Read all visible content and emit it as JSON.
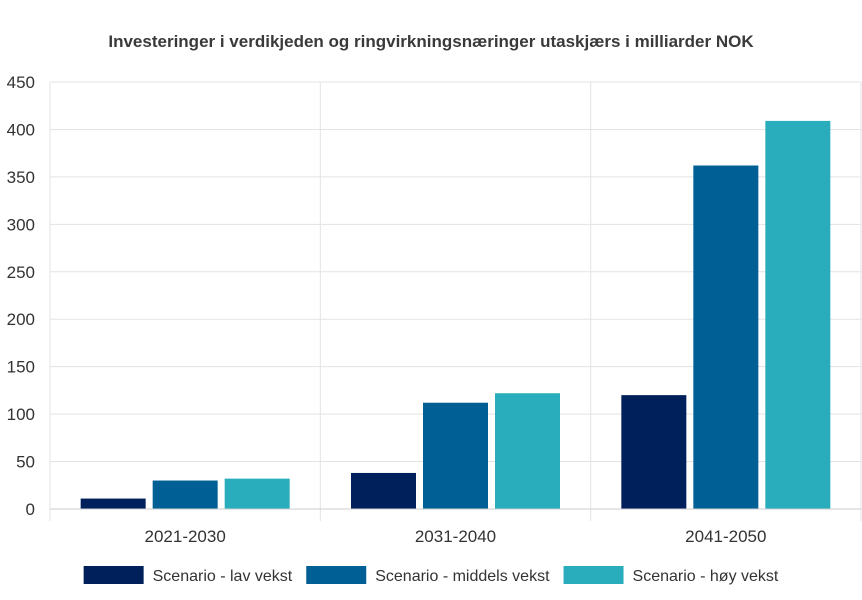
{
  "chart_data": {
    "type": "bar",
    "title": "Investeringer i verdikjeden og ringvirkningsnæringer utaskjærs i milliarder NOK",
    "xlabel": "",
    "ylabel": "",
    "categories": [
      "2021-2030",
      "2031-2040",
      "2041-2050"
    ],
    "ylim": [
      0,
      450
    ],
    "yticks": [
      0,
      50,
      100,
      150,
      200,
      250,
      300,
      350,
      400,
      450
    ],
    "grid": true,
    "legend_position": "bottom",
    "series": [
      {
        "name": "Scenario - lav vekst",
        "color": "#00205b",
        "values": [
          11,
          38,
          120
        ]
      },
      {
        "name": "Scenario - middels vekst",
        "color": "#006096",
        "values": [
          30,
          112,
          362
        ]
      },
      {
        "name": "Scenario - høy vekst",
        "color": "#29adbd",
        "values": [
          32,
          122,
          409
        ]
      }
    ]
  }
}
